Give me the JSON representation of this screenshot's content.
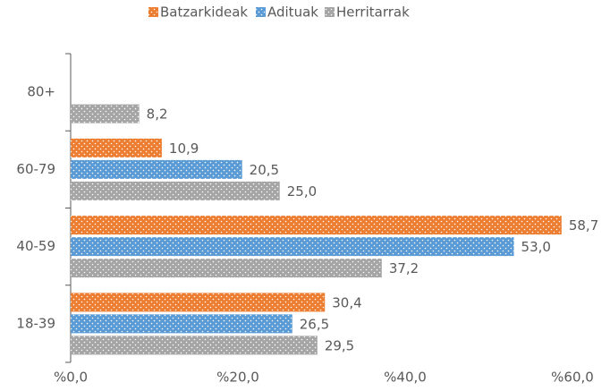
{
  "chart_data": {
    "type": "hbar",
    "categories": [
      "80+",
      "60-79",
      "40-59",
      "18-39"
    ],
    "series": [
      {
        "name": "Batzarkideak",
        "color": "#ed7d31",
        "values": [
          null,
          10.9,
          58.7,
          30.4
        ],
        "value_labels": [
          null,
          "10,9",
          "58,7",
          "30,4"
        ]
      },
      {
        "name": "Adituak",
        "color": "#5b9bd5",
        "values": [
          null,
          20.5,
          53.0,
          26.5
        ],
        "value_labels": [
          null,
          "20,5",
          "53,0",
          "26,5"
        ]
      },
      {
        "name": "Herritarrak",
        "color": "#a5a5a5",
        "values": [
          8.2,
          25.0,
          37.2,
          29.5
        ],
        "value_labels": [
          "8,2",
          "25,0",
          "37,2",
          "29,5"
        ]
      }
    ],
    "xlim": [
      0,
      60
    ],
    "xticks": [
      {
        "value": 0,
        "label": "%0,0"
      },
      {
        "value": 20,
        "label": "%20,0"
      },
      {
        "value": 40,
        "label": "%40,0"
      },
      {
        "value": 60,
        "label": "%60,0"
      }
    ],
    "legend": "top"
  }
}
